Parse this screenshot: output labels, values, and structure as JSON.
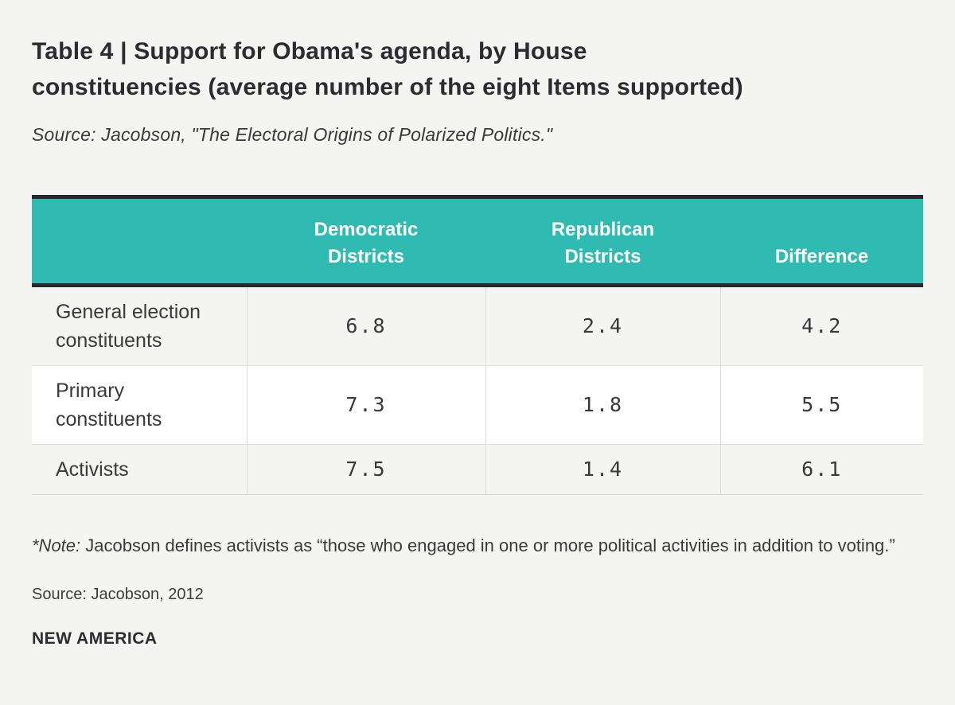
{
  "page": {
    "background": "#f4f4f2",
    "accent_teal": "#2fbbb1",
    "border_dark": "#28282c"
  },
  "header": {
    "title_lines": [
      "Table 4 | Support for Obama's agenda, by House",
      "constituencies (average number of the eight Items supported)"
    ],
    "subtitle": "Source: Jacobson, \"The Electoral Origins of Polarized Politics.\""
  },
  "chart_data": {
    "type": "table",
    "title": "Table 4 | Support for Obama's agenda, by House constituencies (average number of the eight Items supported)",
    "columns": [
      "",
      "Democratic Districts",
      "Republican Districts",
      "Difference"
    ],
    "rows": [
      {
        "label": "General election constituents",
        "values": [
          "6.8",
          "2.4",
          "4.2"
        ]
      },
      {
        "label": "Primary constituents",
        "values": [
          "7.3",
          "1.8",
          "5.5"
        ]
      },
      {
        "label": "Activists",
        "values": [
          "7.5",
          "1.4",
          "6.1"
        ]
      }
    ]
  },
  "table": {
    "col_headers": {
      "democratic": "Democratic Districts",
      "republican": "Republican Districts",
      "difference": "Difference"
    },
    "rows": [
      {
        "label": "General election constituents",
        "values": [
          "6.8",
          "2.4",
          "4.2"
        ]
      },
      {
        "label": "Primary constituents",
        "values": [
          "7.3",
          "1.8",
          "5.5"
        ]
      },
      {
        "label": "Activists",
        "values": [
          "7.5",
          "1.4",
          "6.1"
        ]
      }
    ]
  },
  "footer": {
    "note_prefix": "*Note:",
    "note_rest": " Jacobson defines activists as “those who engaged in one or more political activities in addition to voting.”",
    "source": "Source: Jacobson, 2012",
    "brand": "NEW AMERICA"
  }
}
